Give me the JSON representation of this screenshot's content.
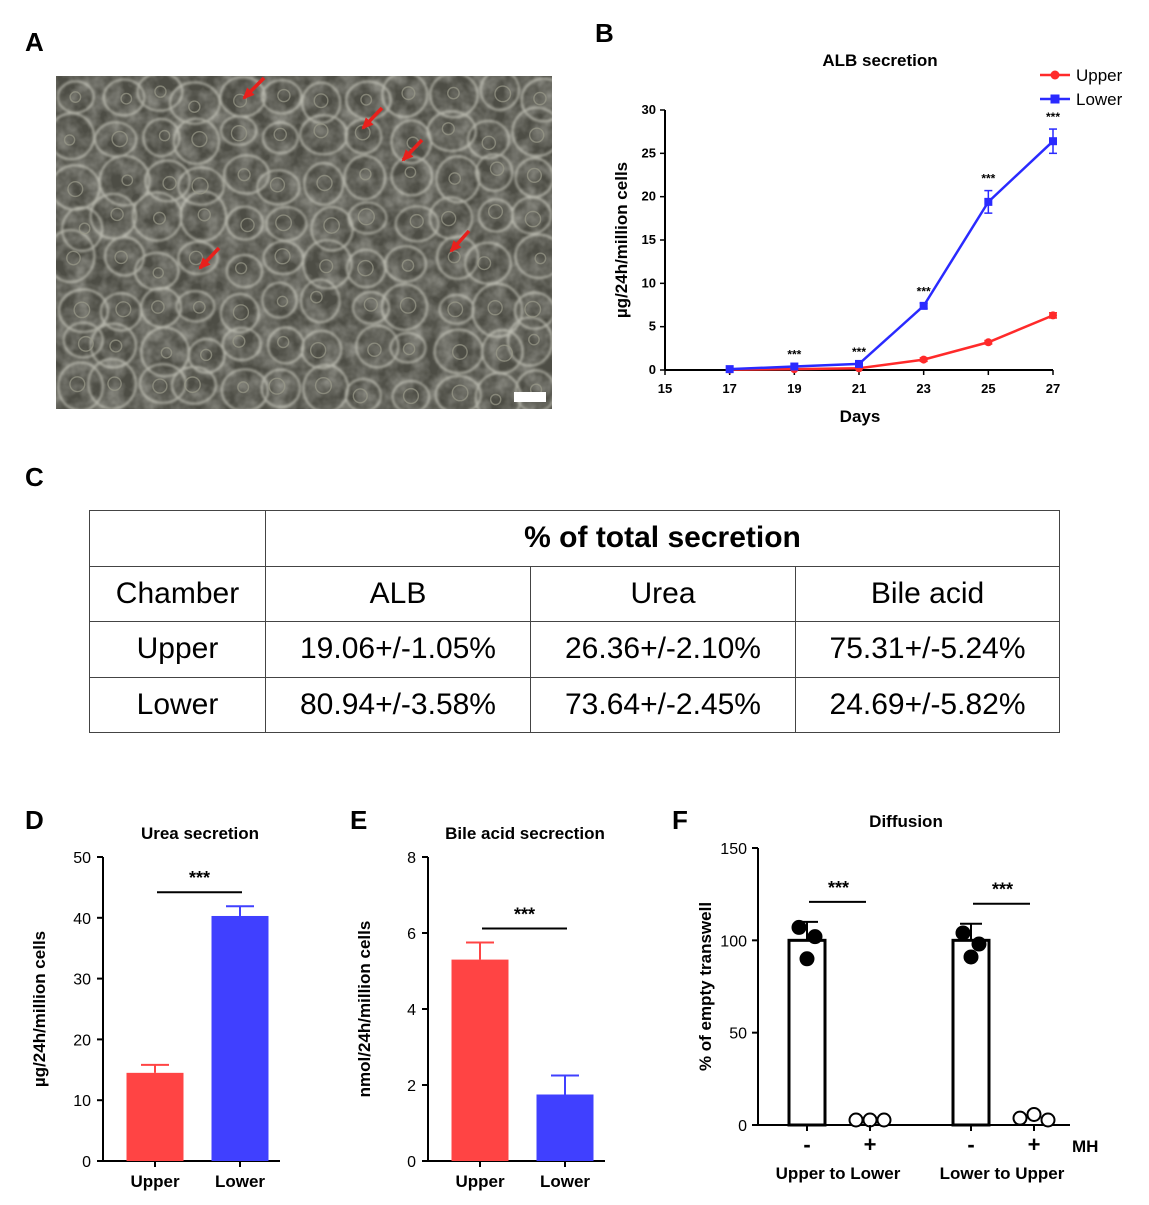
{
  "panels": {
    "a": "A",
    "b": "B",
    "c": "C",
    "d": "D",
    "e": "E",
    "f": "F"
  },
  "colors": {
    "upper": "#ff2a2a",
    "lower": "#2a2aff",
    "upper_bar": "#ff4444",
    "lower_bar": "#4040ff",
    "arrow": "#e8201c"
  },
  "table": {
    "header": "% of total secretion",
    "columns": [
      "Chamber",
      "ALB",
      "Urea",
      "Bile acid"
    ],
    "rows": [
      [
        "Upper",
        "19.06+/-1.05%",
        "26.36+/-2.10%",
        "75.31+/-5.24%"
      ],
      [
        "Lower",
        "80.94+/-3.58%",
        "73.64+/-2.45%",
        "24.69+/-5.82%"
      ]
    ]
  },
  "chart_data": [
    {
      "panel": "B",
      "type": "line",
      "title": "ALB secretion",
      "xlabel": "Days",
      "ylabel": "µg/24h/million cells",
      "xlim": [
        15,
        27
      ],
      "ylim": [
        0,
        30
      ],
      "xticks": [
        15,
        17,
        19,
        21,
        23,
        25,
        27
      ],
      "yticks": [
        0,
        5,
        10,
        15,
        20,
        25,
        30
      ],
      "legend_position": "top-right",
      "x": [
        17,
        19,
        21,
        23,
        25,
        27
      ],
      "series": [
        {
          "name": "Upper",
          "values": [
            0.05,
            0.1,
            0.2,
            1.2,
            3.2,
            6.3
          ],
          "errors": [
            0,
            0,
            0,
            0.2,
            0.2,
            0.3
          ]
        },
        {
          "name": "Lower",
          "values": [
            0.1,
            0.4,
            0.7,
            7.4,
            19.4,
            26.4
          ],
          "errors": [
            0,
            0,
            0,
            0.3,
            1.3,
            1.4
          ]
        }
      ],
      "annotations": [
        {
          "x": 19,
          "text": "***"
        },
        {
          "x": 21,
          "text": "***"
        },
        {
          "x": 23,
          "text": "***"
        },
        {
          "x": 25,
          "text": "***"
        },
        {
          "x": 27,
          "text": "***"
        }
      ]
    },
    {
      "panel": "D",
      "type": "bar",
      "title": "Urea secretion",
      "ylabel": "µg/24h/million cells",
      "ylim": [
        0,
        50
      ],
      "yticks": [
        0,
        10,
        20,
        30,
        40,
        50
      ],
      "categories": [
        "Upper",
        "Lower"
      ],
      "values": [
        14.5,
        40.3
      ],
      "errors": [
        1.3,
        1.6
      ],
      "significance": "***"
    },
    {
      "panel": "E",
      "type": "bar",
      "title": "Bile acid secrection",
      "ylabel": "nmol/24h/million cells",
      "ylim": [
        0,
        8
      ],
      "yticks": [
        0,
        2,
        4,
        6,
        8
      ],
      "categories": [
        "Upper",
        "Lower"
      ],
      "values": [
        5.3,
        1.75
      ],
      "errors": [
        0.45,
        0.5
      ],
      "significance": "***"
    },
    {
      "panel": "F",
      "type": "bar",
      "title": "Diffusion",
      "ylabel": "% of empty transwell",
      "ylim": [
        0,
        150
      ],
      "yticks": [
        0,
        50,
        100,
        150
      ],
      "treatment_label": "MH",
      "groups": [
        "Upper to Lower",
        "Lower to Upper"
      ],
      "categories": [
        "-",
        "+",
        "-",
        "+"
      ],
      "values": [
        100,
        0,
        100,
        1
      ],
      "errors": [
        10,
        0,
        9,
        0
      ],
      "points": [
        [
          107,
          102,
          90
        ],
        [
          0,
          0,
          0
        ],
        [
          104,
          98,
          91
        ],
        [
          1,
          3,
          0
        ]
      ],
      "filled": [
        true,
        false,
        true,
        false
      ],
      "significance": [
        "***",
        "***"
      ]
    }
  ]
}
